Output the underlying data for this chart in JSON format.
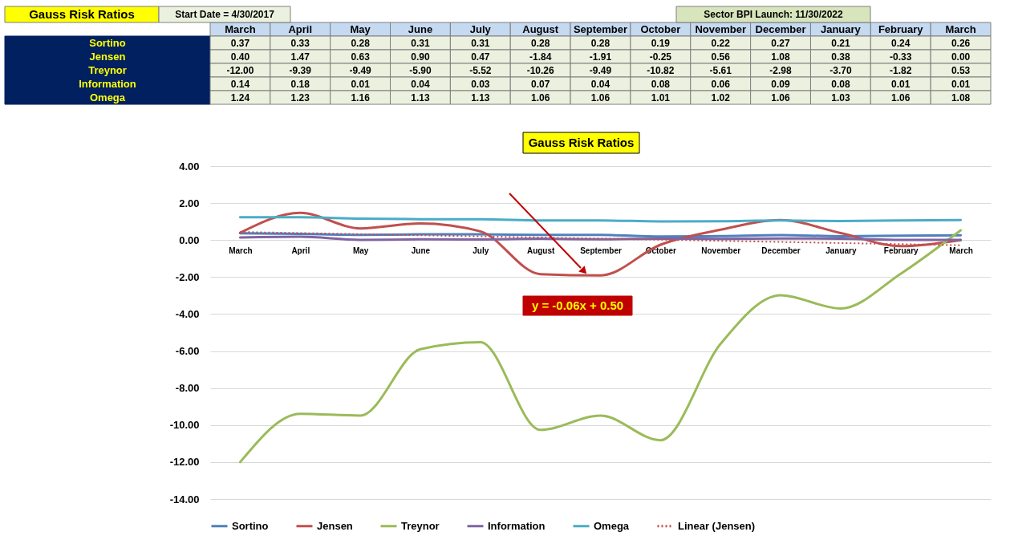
{
  "chart_data": {
    "type": "line",
    "title": "Gauss Risk Ratios",
    "categories": [
      "March",
      "April",
      "May",
      "June",
      "July",
      "August",
      "September",
      "October",
      "November",
      "December",
      "January",
      "February",
      "March"
    ],
    "series": [
      {
        "name": "Sortino",
        "color": "#4f81bd",
        "values": [
          0.37,
          0.33,
          0.28,
          0.31,
          0.31,
          0.28,
          0.28,
          0.19,
          0.22,
          0.27,
          0.21,
          0.24,
          0.26
        ],
        "value_labels": [
          "0.37",
          "0.33",
          "0.28",
          "0.31",
          "0.31",
          "0.28",
          "0.28",
          "0.19",
          "0.22",
          "0.27",
          "0.21",
          "0.24",
          "0.26"
        ]
      },
      {
        "name": "Jensen",
        "color": "#c0504d",
        "values": [
          0.4,
          1.47,
          0.63,
          0.9,
          0.47,
          -1.84,
          -1.91,
          -0.25,
          0.56,
          1.08,
          0.38,
          -0.33,
          0.0
        ],
        "value_labels": [
          "0.40",
          "1.47",
          "0.63",
          "0.90",
          "0.47",
          "-1.84",
          "-1.91",
          "-0.25",
          "0.56",
          "1.08",
          "0.38",
          "-0.33",
          "0.00"
        ]
      },
      {
        "name": "Treynor",
        "color": "#9bbb59",
        "values": [
          -12.0,
          -9.39,
          -9.49,
          -5.9,
          -5.52,
          -10.26,
          -9.49,
          -10.82,
          -5.61,
          -2.98,
          -3.7,
          -1.82,
          0.53
        ],
        "value_labels": [
          "-12.00",
          "-9.39",
          "-9.49",
          "-5.90",
          "-5.52",
          "-10.26",
          "-9.49",
          "-10.82",
          "-5.61",
          "-2.98",
          "-3.70",
          "-1.82",
          "0.53"
        ]
      },
      {
        "name": "Information",
        "color": "#8064a2",
        "values": [
          0.14,
          0.18,
          0.01,
          0.04,
          0.03,
          0.07,
          0.04,
          0.08,
          0.06,
          0.09,
          0.08,
          0.01,
          0.01
        ],
        "value_labels": [
          "0.14",
          "0.18",
          "0.01",
          "0.04",
          "0.03",
          "0.07",
          "0.04",
          "0.08",
          "0.06",
          "0.09",
          "0.08",
          "0.01",
          "0.01"
        ]
      },
      {
        "name": "Omega",
        "color": "#4bacc6",
        "values": [
          1.24,
          1.23,
          1.16,
          1.13,
          1.13,
          1.06,
          1.06,
          1.01,
          1.02,
          1.06,
          1.03,
          1.06,
          1.08
        ],
        "value_labels": [
          "1.24",
          "1.23",
          "1.16",
          "1.13",
          "1.13",
          "1.06",
          "1.06",
          "1.01",
          "1.02",
          "1.06",
          "1.03",
          "1.06",
          "1.08"
        ]
      },
      {
        "name": "Linear (Jensen)",
        "color": "#c0504d",
        "type": "line",
        "line_style": "dotted",
        "values": [
          0.44,
          0.38,
          0.32,
          0.26,
          0.2,
          0.14,
          0.08,
          0.02,
          -0.04,
          -0.1,
          -0.16,
          -0.22,
          -0.28
        ]
      }
    ],
    "ylim": [
      -14,
      4
    ],
    "yticks": [
      {
        "value": -14,
        "label": "-14.00"
      },
      {
        "value": -12,
        "label": "-12.00"
      },
      {
        "value": -10,
        "label": "-10.00"
      },
      {
        "value": -8,
        "label": "-8.00"
      },
      {
        "value": -6,
        "label": "-6.00"
      },
      {
        "value": -4,
        "label": "-4.00"
      },
      {
        "value": -2,
        "label": "-2.00"
      },
      {
        "value": 0,
        "label": "0.00"
      },
      {
        "value": 2,
        "label": "2.00"
      },
      {
        "value": 4,
        "label": "4.00"
      }
    ],
    "grid": "y",
    "legend": "bottom",
    "annotations": [
      "Gauss Risk Ratios",
      "Start Date = 4/30/2017",
      "Sector BPI Launch: 11/30/2022",
      "y = -0.06x + 0.50"
    ]
  }
}
